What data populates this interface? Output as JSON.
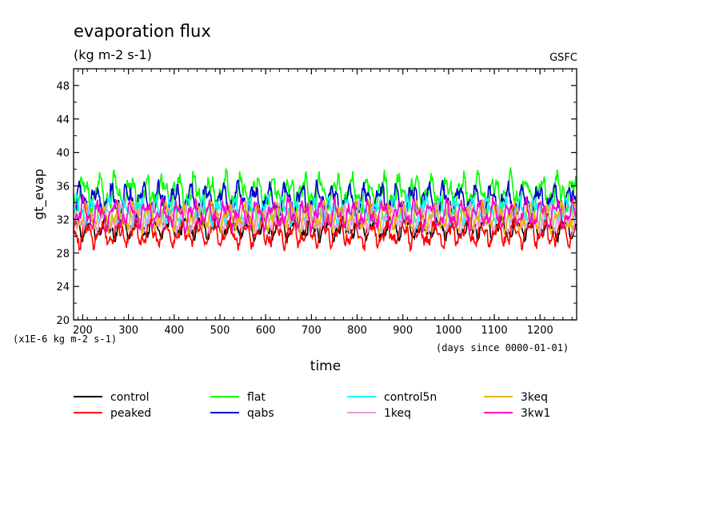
{
  "chart_data": {
    "type": "line",
    "title": "evaporation flux",
    "subtitle": "(kg m-2 s-1)",
    "source": "GSFC",
    "xlabel": "time",
    "ylabel": "gt_evap",
    "y_unit_note": "(x1E-6 kg m-2 s-1)",
    "x_unit_note": "(days since 0000-01-01)",
    "xlim": [
      180,
      1280
    ],
    "ylim": [
      20,
      50
    ],
    "xticks": [
      200,
      300,
      400,
      500,
      600,
      700,
      800,
      900,
      1000,
      1100,
      1200
    ],
    "yticks": [
      20,
      24,
      28,
      32,
      36,
      40,
      44,
      48
    ],
    "grid": false,
    "legend_placement": "below",
    "series": [
      {
        "name": "control",
        "color": "#000000",
        "mean": 31.0,
        "amp": 0.9,
        "noise": 0.5
      },
      {
        "name": "peaked",
        "color": "#ff0000",
        "mean": 30.3,
        "amp": 1.0,
        "noise": 0.6
      },
      {
        "name": "flat",
        "color": "#00ff00",
        "mean": 35.2,
        "amp": 1.4,
        "noise": 0.8
      },
      {
        "name": "qabs",
        "color": "#0000cc",
        "mean": 34.3,
        "amp": 1.2,
        "noise": 0.7
      },
      {
        "name": "control5n",
        "color": "#00ffff",
        "mean": 33.0,
        "amp": 1.0,
        "noise": 0.6
      },
      {
        "name": "1keq",
        "color": "#e89ee0",
        "mean": 32.2,
        "amp": 1.0,
        "noise": 0.6
      },
      {
        "name": "3keq",
        "color": "#e8b400",
        "mean": 32.3,
        "amp": 1.1,
        "noise": 0.6
      },
      {
        "name": "3kw1",
        "color": "#ff00c8",
        "mean": 32.6,
        "amp": 1.1,
        "noise": 0.6
      }
    ]
  }
}
